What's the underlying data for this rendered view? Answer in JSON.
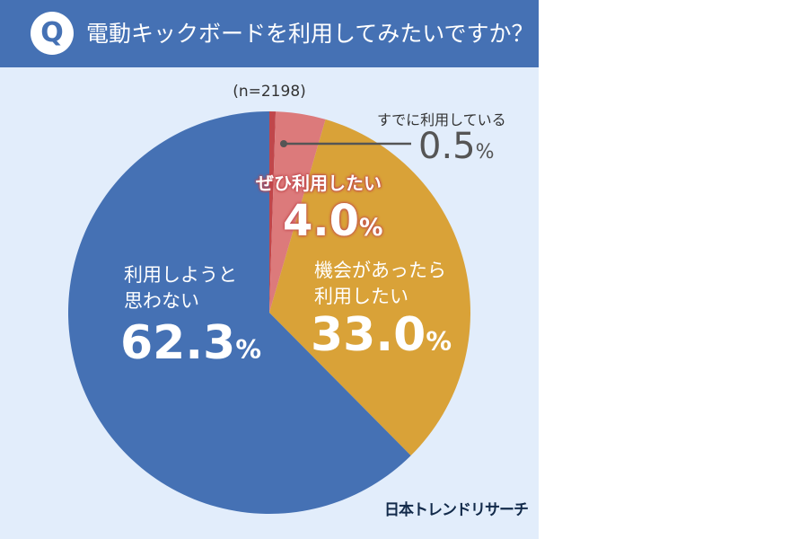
{
  "header": {
    "badge": "Q",
    "title": "電動キックボードを利用してみたいですか？"
  },
  "sample": "(n=2198)",
  "source": "日本トレンドリサーチ",
  "chart_data": {
    "type": "pie",
    "title": "電動キックボードを利用してみたいですか？",
    "start": "top, clockwise",
    "slices": [
      {
        "label": "すでに利用している",
        "value": 0.5,
        "display": "0.5",
        "color": "#c0474b"
      },
      {
        "label": "ぜひ利用したい",
        "value": 4.0,
        "display": "4.0",
        "color": "#dc7a7b"
      },
      {
        "label": "機会があったら利用したい",
        "label_lines": [
          "機会があったら",
          "利用したい"
        ],
        "value": 33.0,
        "display": "33.0",
        "color": "#d9a238"
      },
      {
        "label": "利用しようと思わない",
        "label_lines": [
          "利用しようと",
          "思わない"
        ],
        "value": 62.3,
        "display": "62.3",
        "color": "#4571b4"
      }
    ],
    "unit": "%"
  }
}
